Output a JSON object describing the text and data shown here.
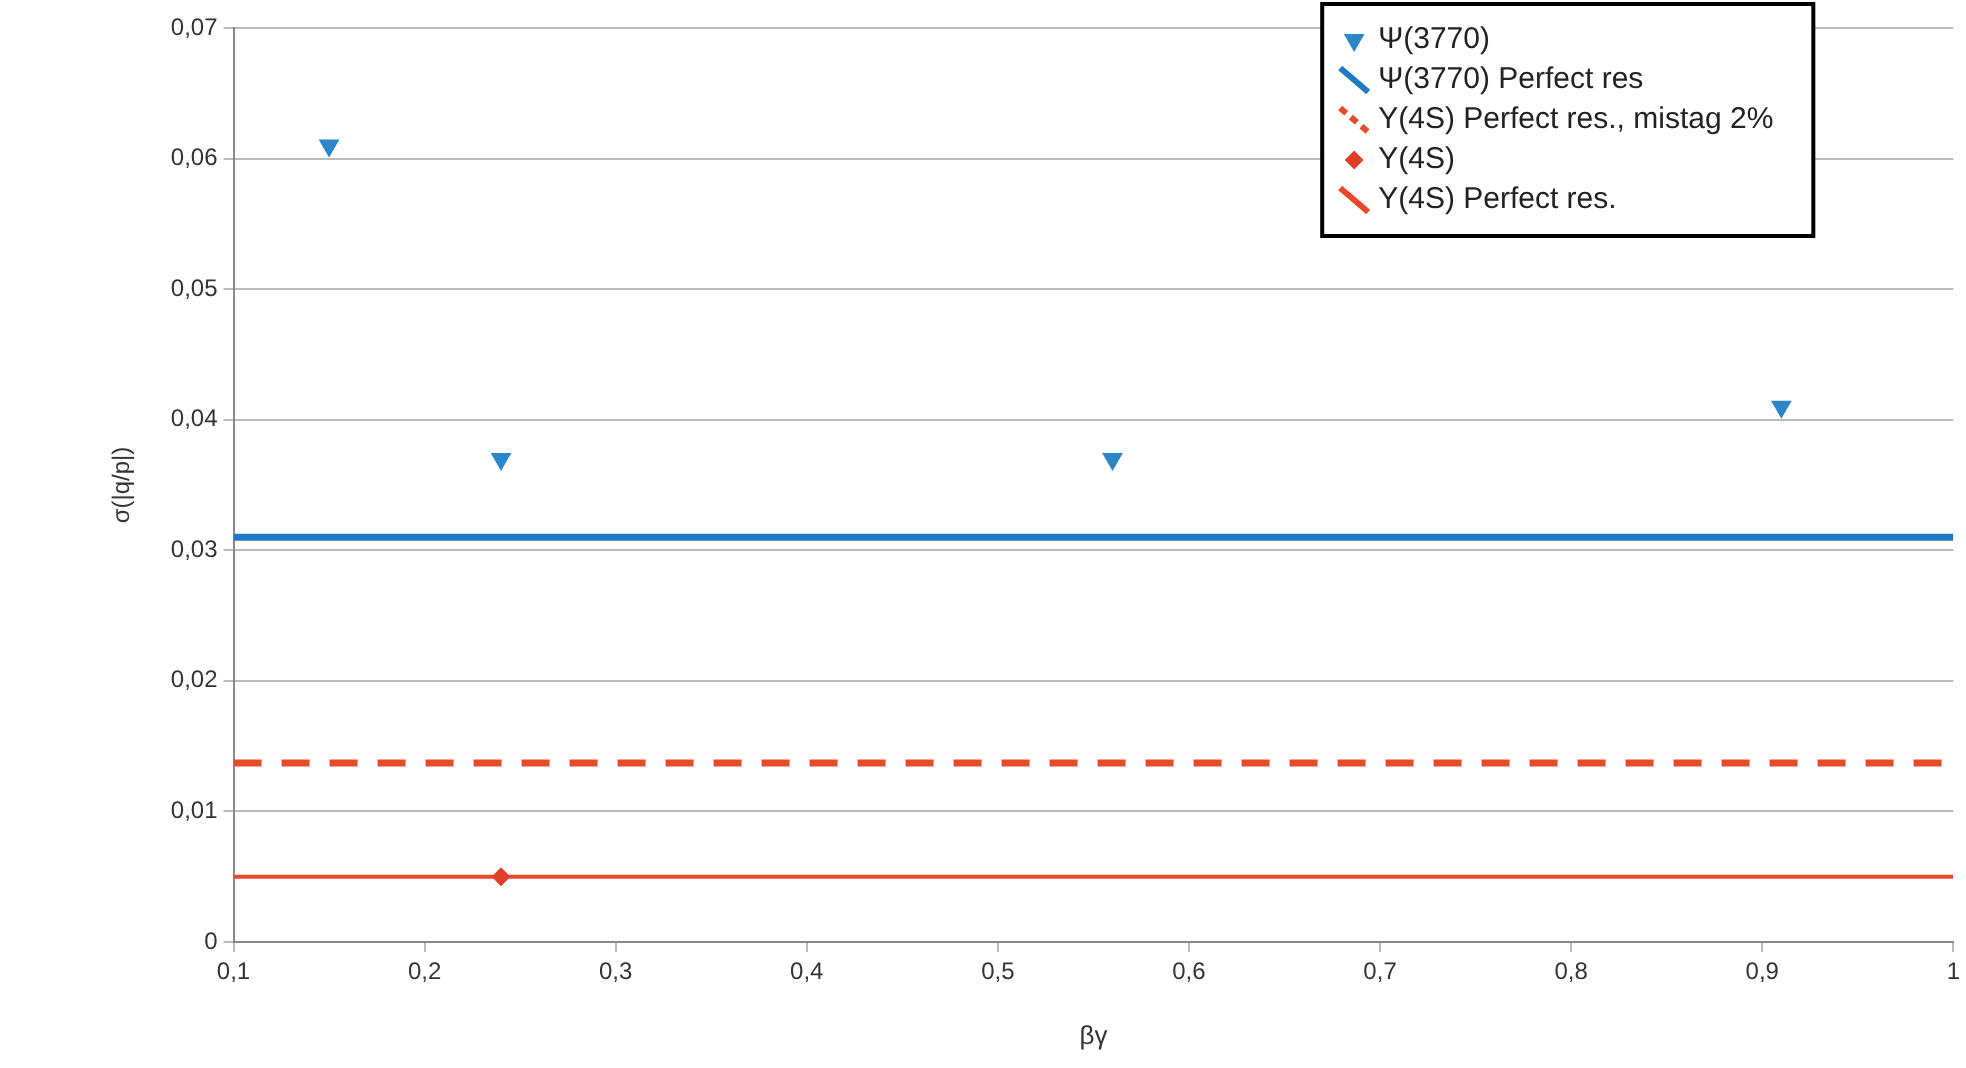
{
  "chart_data": {
    "type": "scatter",
    "xlabel": "βγ",
    "ylabel": "σ(|q/p|)",
    "xlim": [
      0.1,
      1
    ],
    "xticks": [
      {
        "value": 0.1,
        "label": "0,1"
      },
      {
        "value": 0.2,
        "label": "0,2"
      },
      {
        "value": 0.3,
        "label": "0,3"
      },
      {
        "value": 0.4,
        "label": "0,4"
      },
      {
        "value": 0.5,
        "label": "0,5"
      },
      {
        "value": 0.6,
        "label": "0,6"
      },
      {
        "value": 0.7,
        "label": "0,7"
      },
      {
        "value": 0.8,
        "label": "0,8"
      },
      {
        "value": 0.9,
        "label": "0,9"
      },
      1
    ],
    "ylim": [
      0,
      0.07
    ],
    "yticks": [
      0,
      {
        "value": 0.01,
        "label": "0,01"
      },
      {
        "value": 0.02,
        "label": "0,02"
      },
      {
        "value": 0.03,
        "label": "0,03"
      },
      {
        "value": 0.04,
        "label": "0,04"
      },
      {
        "value": 0.05,
        "label": "0,05"
      },
      {
        "value": 0.06,
        "label": "0,06"
      },
      {
        "value": 0.07,
        "label": "0,07"
      }
    ],
    "grid": "y",
    "legend": "top right",
    "series": [
      {
        "name": "Ψ(3770)",
        "type": "scatter",
        "marker": "triangle",
        "color": "#2a86c8",
        "x": [
          0.15,
          0.24,
          0.56,
          0.91
        ],
        "values": [
          0.061,
          0.037,
          0.037,
          0.041
        ]
      },
      {
        "name": "Ψ(3770) Perfect res",
        "type": "line",
        "marker": "none",
        "line_style": "solid",
        "color": "#1f78c1",
        "x": [
          0.1,
          1
        ],
        "values": [
          0.031,
          0.031
        ]
      },
      {
        "name": "Y(4S) Perfect res., mistag 2%",
        "type": "line",
        "marker": "none",
        "line_style": "dashed",
        "color": "#e8492a",
        "x": [
          0.1,
          1
        ],
        "values": [
          0.0137,
          0.0137
        ]
      },
      {
        "name": "Y(4S)",
        "type": "scatter",
        "marker": "diamond",
        "color": "#e0402a",
        "x": [
          0.24
        ],
        "values": [
          0.005
        ]
      },
      {
        "name": "Y(4S) Perfect res.",
        "type": "line",
        "marker": "none",
        "line_style": "solid",
        "color": "#e8492a",
        "x": [
          0.1,
          1
        ],
        "values": [
          0.005,
          0.005
        ]
      }
    ]
  }
}
